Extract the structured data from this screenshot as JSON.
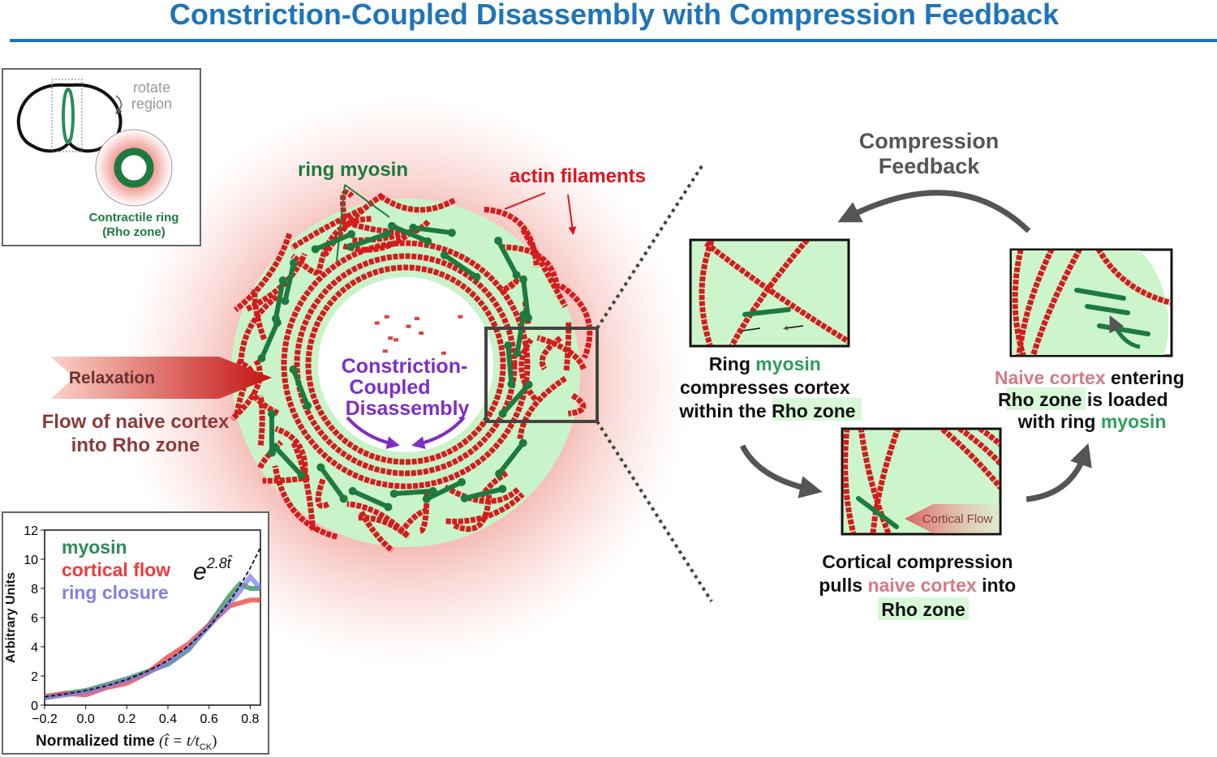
{
  "title": "Constriction-Coupled Disassembly with Compression Feedback",
  "inset": {
    "rotate": [
      "rotate",
      "region"
    ],
    "ring_label": [
      "Contractile ring",
      "(Rho zone)"
    ]
  },
  "center": {
    "ring_myosin": "ring myosin",
    "actin": "actin filaments",
    "disassembly": [
      "Constriction-",
      "Coupled",
      "Disassembly"
    ],
    "relaxation": "Relaxation",
    "flow": [
      "Flow of naive cortex",
      "into Rho zone"
    ]
  },
  "feedback": {
    "title": [
      "Compression",
      "Feedback"
    ],
    "step1": [
      [
        "Ring",
        "myosin"
      ],
      [
        "compresses cortex"
      ],
      [
        "within the",
        "Rho zone"
      ]
    ],
    "step2": [
      [
        "Cortical compression"
      ],
      [
        "pulls",
        "naive cortex",
        "into"
      ],
      [
        "Rho zone"
      ]
    ],
    "step3": [
      [
        "Naive cortex",
        "entering"
      ],
      [
        "Rho zone",
        "is loaded"
      ],
      [
        "with ring",
        "myosin"
      ]
    ],
    "flow_label": "Cortical Flow"
  },
  "chart_data": {
    "type": "line",
    "xlabel": "Normalized time",
    "formula": [
      "(t̂ = t/t",
      "CK",
      ")"
    ],
    "ylabel": "Arbitrary Units",
    "fit_label": [
      "e",
      "2.8t̂"
    ],
    "x": [
      -0.2,
      -0.1,
      0,
      0.1,
      0.2,
      0.3,
      0.4,
      0.5,
      0.6,
      0.7,
      0.75,
      0.8,
      0.85
    ],
    "series": [
      {
        "name": "myosin",
        "color": "#2e8b57",
        "values": [
          0.5,
          0.8,
          1.0,
          1.4,
          1.8,
          2.3,
          2.8,
          3.8,
          5.5,
          7.5,
          8.3,
          8.0,
          8.0
        ]
      },
      {
        "name": "cortical flow",
        "color": "#ee3b3b",
        "values": [
          0.6,
          0.8,
          0.7,
          1.2,
          1.5,
          2.2,
          3.3,
          4.2,
          5.5,
          6.8,
          7.0,
          7.2,
          7.2
        ]
      },
      {
        "name": "ring closure",
        "color": "#8080e0",
        "values": [
          0.5,
          0.7,
          0.9,
          1.3,
          1.7,
          2.2,
          2.9,
          3.9,
          5.4,
          7.0,
          7.8,
          8.8,
          8.0
        ]
      },
      {
        "color": "#111111",
        "dashed": true,
        "values": [
          0.57,
          0.76,
          1,
          1.32,
          1.75,
          2.32,
          3.06,
          4.06,
          5.37,
          7.1,
          8.17,
          9.39,
          10.8
        ]
      }
    ],
    "xlim": [
      -0.2,
      0.85
    ],
    "ylim": [
      0,
      12
    ],
    "xticks": [
      {
        "value": -0.2,
        "label": "−0.2"
      },
      {
        "value": 0,
        "label": "0.0"
      },
      0.2,
      0.4,
      0.6,
      0.8
    ],
    "yticks": [
      0,
      2,
      4,
      6,
      8,
      10,
      12
    ]
  }
}
